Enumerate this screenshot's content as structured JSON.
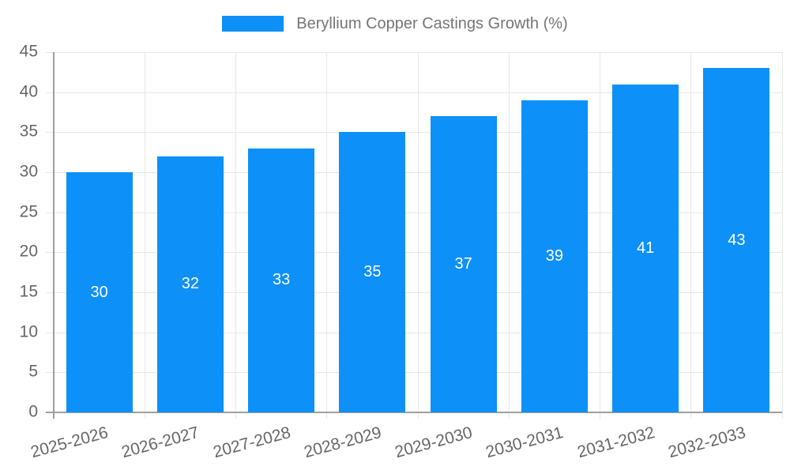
{
  "chart_data": {
    "type": "bar",
    "title": "",
    "xlabel": "",
    "ylabel": "",
    "categories": [
      "2025-2026",
      "2026-2027",
      "2027-2028",
      "2028-2029",
      "2029-2030",
      "2030-2031",
      "2031-2032",
      "2032-2033"
    ],
    "series": [
      {
        "name": "Beryllium Copper Castings Growth (%)",
        "values": [
          30,
          32,
          33,
          35,
          37,
          39,
          41,
          43
        ]
      }
    ],
    "ylim": [
      0,
      45
    ],
    "ytick_step": 5,
    "yticks": [
      0,
      5,
      10,
      15,
      20,
      25,
      30,
      35,
      40,
      45
    ],
    "grid": true,
    "legend_position": "top-center",
    "bar_value_labels_inside": true,
    "x_label_rotation_deg": -15
  },
  "colors": {
    "bar": "#0d90f8",
    "bar_label": "#ffffff",
    "legend_text": "#757575",
    "tick_text": "#666666",
    "axis_line": "#9e9e9e",
    "gridline": "#e7e7e7",
    "background": "#ffffff"
  }
}
